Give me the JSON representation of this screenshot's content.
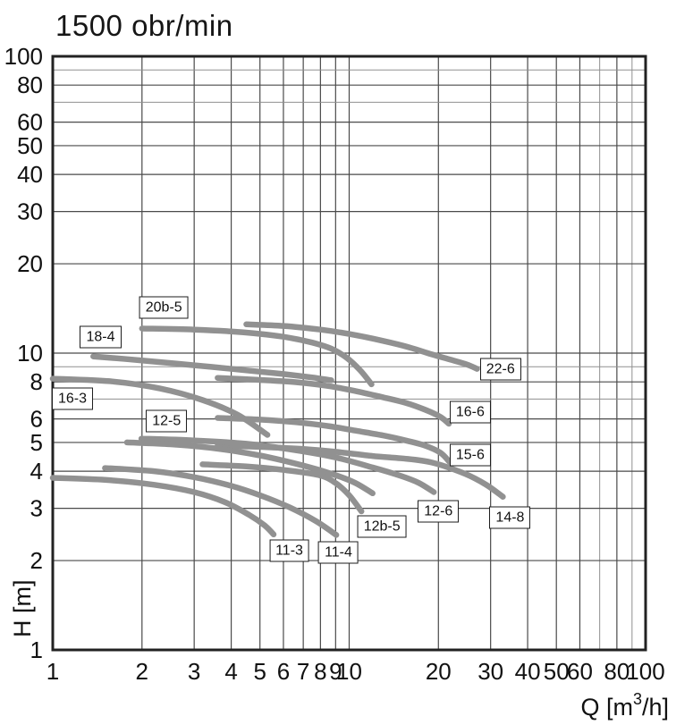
{
  "title": "1500 obr/min",
  "chart_data": {
    "type": "line",
    "title": "1500 obr/min",
    "xlabel": {
      "prefix": "Q [m",
      "sup": "3",
      "suffix": "/h]"
    },
    "ylabel": "H [m]",
    "axes": {
      "x": {
        "min": 1,
        "max": 100,
        "scale": "log"
      },
      "y": {
        "min": 1,
        "max": 100,
        "scale": "log"
      }
    },
    "x_tick_labels": [
      1,
      2,
      3,
      4,
      5,
      6,
      7,
      8,
      9,
      10,
      20,
      30,
      40,
      50,
      60,
      80,
      100
    ],
    "y_tick_labels": [
      1,
      2,
      3,
      4,
      5,
      6,
      8,
      10,
      20,
      30,
      40,
      50,
      60,
      80,
      100
    ],
    "x_gridlines": [
      1,
      2,
      3,
      4,
      5,
      6,
      7,
      8,
      9,
      10,
      20,
      30,
      40,
      50,
      60,
      70,
      80,
      90,
      100
    ],
    "y_gridlines": [
      1,
      2,
      3,
      4,
      5,
      6,
      7,
      8,
      9,
      10,
      20,
      30,
      40,
      50,
      60,
      70,
      80,
      90,
      100
    ],
    "colors": {
      "curve": "#919191",
      "grid_major": "#4a4a4a",
      "grid_minor": "#8f8f8f",
      "border": "#222222",
      "text": "#111111"
    },
    "series": [
      {
        "name": "22-6",
        "label_at": {
          "q": 32.4,
          "h": 8.85
        },
        "points": [
          [
            4.5,
            12.5
          ],
          [
            6,
            12.35
          ],
          [
            8,
            12.0
          ],
          [
            10,
            11.6
          ],
          [
            13,
            11.0
          ],
          [
            16,
            10.45
          ],
          [
            19,
            9.9
          ],
          [
            22,
            9.5
          ],
          [
            25,
            9.15
          ],
          [
            27,
            8.85
          ]
        ]
      },
      {
        "name": "20b-5",
        "label_at": {
          "q": 2.37,
          "h": 14.2
        },
        "points": [
          [
            2,
            12.1
          ],
          [
            3,
            12.0
          ],
          [
            4.4,
            11.75
          ],
          [
            6,
            11.35
          ],
          [
            7.5,
            10.85
          ],
          [
            8.7,
            10.35
          ],
          [
            9.8,
            9.65
          ],
          [
            10.9,
            8.75
          ],
          [
            11.9,
            7.85
          ]
        ]
      },
      {
        "name": "18-4",
        "label_at": {
          "q": 1.45,
          "h": 11.3
        },
        "points": [
          [
            1.37,
            9.75
          ],
          [
            2,
            9.45
          ],
          [
            3,
            9.1
          ],
          [
            4.5,
            8.75
          ],
          [
            6,
            8.5
          ],
          [
            7.5,
            8.28
          ],
          [
            8.7,
            8.1
          ]
        ]
      },
      {
        "name": "16-3",
        "label_at": {
          "q": 1.165,
          "h": 7.0
        },
        "points": [
          [
            1,
            8.2
          ],
          [
            1.6,
            8.02
          ],
          [
            2.3,
            7.6
          ],
          [
            3.2,
            6.95
          ],
          [
            4.2,
            6.2
          ],
          [
            5.3,
            5.3
          ]
        ]
      },
      {
        "name": "16-6",
        "label_at": {
          "q": 25.6,
          "h": 6.33
        },
        "points": [
          [
            3.6,
            8.25
          ],
          [
            5,
            8.12
          ],
          [
            6.6,
            7.98
          ],
          [
            8.5,
            7.75
          ],
          [
            10.5,
            7.45
          ],
          [
            13,
            7.1
          ],
          [
            15.5,
            6.8
          ],
          [
            18,
            6.45
          ],
          [
            20.3,
            6.1
          ],
          [
            21.7,
            5.78
          ]
        ]
      },
      {
        "name": "15-6",
        "label_at": {
          "q": 25.6,
          "h": 4.52
        },
        "points": [
          [
            3.6,
            6.05
          ],
          [
            5,
            5.97
          ],
          [
            6.6,
            5.85
          ],
          [
            8.5,
            5.68
          ],
          [
            10.5,
            5.48
          ],
          [
            13,
            5.28
          ],
          [
            15.5,
            5.08
          ],
          [
            18,
            4.88
          ],
          [
            20.3,
            4.62
          ],
          [
            21.8,
            4.3
          ]
        ]
      },
      {
        "name": "14-8",
        "label_at": {
          "q": 34.9,
          "h": 2.8
        },
        "points": [
          [
            3.6,
            4.88
          ],
          [
            5,
            4.83
          ],
          [
            7,
            4.75
          ],
          [
            9,
            4.65
          ],
          [
            12,
            4.5
          ],
          [
            15,
            4.42
          ],
          [
            19,
            4.28
          ],
          [
            24.6,
            3.92
          ],
          [
            29,
            3.6
          ],
          [
            33,
            3.28
          ]
        ]
      },
      {
        "name": "12-6",
        "label_at": {
          "q": 20.0,
          "h": 2.92
        },
        "points": [
          [
            1.99,
            5.15
          ],
          [
            3,
            5.08
          ],
          [
            4.5,
            4.95
          ],
          [
            6.5,
            4.72
          ],
          [
            9,
            4.45
          ],
          [
            12,
            4.12
          ],
          [
            15,
            3.85
          ],
          [
            17.2,
            3.65
          ],
          [
            19.3,
            3.4
          ]
        ]
      },
      {
        "name": "12-5",
        "label_at": {
          "q": 2.42,
          "h": 5.9
        },
        "points": [
          [
            1.78,
            5.0
          ],
          [
            2.5,
            4.93
          ],
          [
            3.5,
            4.78
          ],
          [
            5,
            4.52
          ],
          [
            7,
            4.18
          ],
          [
            9,
            3.88
          ],
          [
            10.5,
            3.65
          ],
          [
            12,
            3.37
          ]
        ]
      },
      {
        "name": "12b-5",
        "label_at": {
          "q": 12.9,
          "h": 2.6
        },
        "points": [
          [
            3.2,
            4.22
          ],
          [
            4.5,
            4.15
          ],
          [
            6,
            4.04
          ],
          [
            7.9,
            3.88
          ],
          [
            9,
            3.65
          ],
          [
            10,
            3.32
          ],
          [
            11,
            2.93
          ]
        ]
      },
      {
        "name": "11-4",
        "label_at": {
          "q": 9.2,
          "h": 2.13
        },
        "points": [
          [
            1.5,
            4.1
          ],
          [
            2.2,
            4.0
          ],
          [
            3,
            3.82
          ],
          [
            4,
            3.57
          ],
          [
            5,
            3.32
          ],
          [
            6.3,
            3.02
          ],
          [
            7.7,
            2.72
          ],
          [
            9.05,
            2.44
          ]
        ]
      },
      {
        "name": "11-3",
        "label_at": {
          "q": 6.28,
          "h": 2.16
        },
        "points": [
          [
            1,
            3.8
          ],
          [
            1.5,
            3.74
          ],
          [
            2.2,
            3.6
          ],
          [
            3,
            3.4
          ],
          [
            3.8,
            3.15
          ],
          [
            4.6,
            2.85
          ],
          [
            5.2,
            2.62
          ],
          [
            5.56,
            2.45
          ]
        ]
      }
    ]
  }
}
